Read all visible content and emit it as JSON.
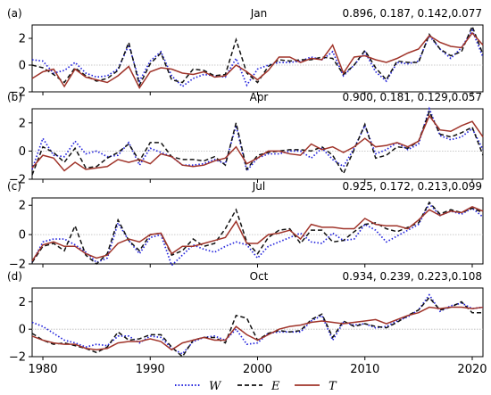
{
  "chart_data": {
    "type": "line",
    "xlim": [
      1979,
      2021
    ],
    "x_ticks": [
      1980,
      1990,
      2000,
      2010,
      2020
    ],
    "legend": {
      "placement": "bottom-center",
      "entries": [
        {
          "series": "W",
          "label": "W"
        },
        {
          "series": "E",
          "label": "E"
        },
        {
          "series": "T",
          "label": "T"
        }
      ]
    },
    "styles": {
      "W": {
        "color": "#2222dd",
        "dash": "1.5 2.2",
        "width": 1.7
      },
      "E": {
        "color": "#111111",
        "dash": "5 3",
        "width": 1.5
      },
      "T": {
        "color": "#a0342a",
        "dash": "",
        "width": 1.5
      }
    },
    "x": [
      1979,
      1980,
      1981,
      1982,
      1983,
      1984,
      1985,
      1986,
      1987,
      1988,
      1989,
      1990,
      1991,
      1992,
      1993,
      1994,
      1995,
      1996,
      1997,
      1998,
      1999,
      2000,
      2001,
      2002,
      2003,
      2004,
      2005,
      2006,
      2007,
      2008,
      2009,
      2010,
      2011,
      2012,
      2013,
      2014,
      2015,
      2016,
      2017,
      2018,
      2019,
      2020,
      2021
    ],
    "panels": [
      {
        "panel_label": "(a)",
        "title": "Jan",
        "stats": "0.896, 0.187, 0.142,0.077",
        "ylim": [
          -2,
          3
        ],
        "y_ticks": [
          -2,
          0,
          2
        ],
        "series": [
          {
            "name": "W",
            "values": [
              0.4,
              0.3,
              -0.6,
              -0.4,
              0.2,
              -0.6,
              -0.9,
              -0.8,
              -0.3,
              1.5,
              -1.2,
              0.3,
              1.0,
              -0.8,
              -1.6,
              -1.0,
              -0.7,
              -0.8,
              -0.9,
              0.5,
              -1.5,
              -0.3,
              0.0,
              0.2,
              0.2,
              0.3,
              0.6,
              0.4,
              1.0,
              -0.8,
              0.0,
              1.0,
              -0.5,
              -1.2,
              0.2,
              0.1,
              0.3,
              2.2,
              1.2,
              0.5,
              1.3,
              2.6,
              0.6
            ]
          },
          {
            "name": "E",
            "values": [
              0.0,
              -0.2,
              -0.7,
              -1.3,
              -0.2,
              -0.8,
              -1.2,
              -1.0,
              -0.4,
              1.7,
              -1.5,
              0.1,
              0.9,
              -1.1,
              -1.3,
              -0.3,
              -0.4,
              -0.8,
              -0.7,
              1.9,
              -0.6,
              -1.3,
              -0.1,
              0.4,
              0.3,
              0.4,
              0.4,
              0.6,
              0.5,
              -0.7,
              0.0,
              1.1,
              -0.2,
              -1.1,
              0.3,
              0.2,
              0.2,
              2.3,
              1.2,
              0.7,
              1.0,
              2.9,
              0.8
            ]
          },
          {
            "name": "T",
            "values": [
              -1.0,
              -0.5,
              -0.3,
              -1.6,
              -0.3,
              -0.9,
              -1.1,
              -1.3,
              -0.8,
              -0.1,
              -1.7,
              -0.5,
              -0.2,
              -0.3,
              -0.6,
              -0.7,
              -0.5,
              -0.9,
              -0.8,
              0.0,
              -0.5,
              -1.1,
              -0.4,
              0.6,
              0.6,
              0.2,
              0.5,
              0.4,
              1.5,
              -0.6,
              0.6,
              0.7,
              0.4,
              0.2,
              0.5,
              0.9,
              1.2,
              2.2,
              1.7,
              1.4,
              1.3,
              2.4,
              1.5
            ]
          }
        ]
      },
      {
        "panel_label": "(b)",
        "title": "Apr",
        "stats": "0.900, 0.181, 0.129,0.057",
        "ylim": [
          -2,
          3
        ],
        "y_ticks": [
          -2,
          0,
          2
        ],
        "series": [
          {
            "name": "W",
            "values": [
              -1.3,
              0.9,
              -0.3,
              -0.4,
              0.7,
              -0.2,
              0.0,
              -0.4,
              -0.3,
              0.6,
              -1.0,
              0.2,
              -0.1,
              -0.4,
              -1.0,
              -1.0,
              -0.9,
              -0.6,
              -0.9,
              1.8,
              -1.4,
              -0.5,
              -0.2,
              -0.2,
              0.0,
              0.0,
              -0.5,
              0.2,
              -0.6,
              -1.1,
              0.2,
              1.8,
              -0.2,
              0.1,
              0.6,
              0.1,
              0.5,
              3.0,
              1.1,
              0.8,
              1.0,
              1.6,
              0.1
            ]
          },
          {
            "name": "E",
            "values": [
              -1.7,
              0.3,
              -0.1,
              -0.8,
              0.2,
              -1.2,
              -1.1,
              -0.5,
              -0.1,
              0.5,
              -0.7,
              0.6,
              0.6,
              -0.4,
              -0.6,
              -0.6,
              -0.7,
              -0.4,
              -1.0,
              2.0,
              -1.3,
              -0.3,
              -0.1,
              0.0,
              0.1,
              0.1,
              0.0,
              0.3,
              -0.3,
              -1.6,
              0.1,
              1.9,
              -0.5,
              -0.3,
              0.3,
              0.2,
              0.7,
              2.8,
              1.2,
              1.0,
              1.3,
              1.7,
              -0.3
            ]
          },
          {
            "name": "T",
            "values": [
              -1.2,
              -0.3,
              -0.5,
              -1.4,
              -0.8,
              -1.3,
              -1.2,
              -1.1,
              -0.6,
              -0.8,
              -0.6,
              -0.9,
              -0.2,
              -0.4,
              -1.0,
              -1.1,
              -1.0,
              -0.7,
              -0.5,
              0.3,
              -0.9,
              -0.5,
              0.0,
              0.0,
              -0.2,
              -0.3,
              0.5,
              0.1,
              0.3,
              -0.1,
              0.3,
              0.9,
              0.3,
              0.4,
              0.6,
              0.3,
              0.7,
              2.5,
              1.5,
              1.4,
              1.8,
              2.1,
              1.0
            ]
          }
        ]
      },
      {
        "panel_label": "(c)",
        "title": "Jul",
        "stats": "0.925, 0.172, 0.213,0.099",
        "ylim": [
          -2,
          2.5
        ],
        "y_ticks": [
          -2,
          0,
          2
        ],
        "series": [
          {
            "name": "W",
            "values": [
              -1.9,
              -0.5,
              -0.3,
              -0.3,
              -0.7,
              -1.2,
              -1.9,
              -1.6,
              0.8,
              -0.4,
              -1.3,
              -0.2,
              0.0,
              -2.1,
              -1.4,
              -0.7,
              -1.0,
              -1.2,
              -0.8,
              -0.5,
              -0.7,
              -1.6,
              -0.8,
              -0.5,
              -0.2,
              0.1,
              -0.5,
              -0.6,
              0.1,
              -0.4,
              -0.3,
              0.7,
              0.3,
              -0.5,
              -0.1,
              0.3,
              0.7,
              2.1,
              1.3,
              1.6,
              1.4,
              1.8,
              1.2
            ]
          },
          {
            "name": "E",
            "values": [
              -1.9,
              -0.8,
              -0.6,
              -1.1,
              0.6,
              -1.4,
              -2.0,
              -1.3,
              1.0,
              -0.4,
              -1.1,
              0.0,
              0.1,
              -1.4,
              -1.1,
              -0.3,
              -0.8,
              -0.6,
              0.4,
              1.7,
              -0.5,
              -1.3,
              -0.2,
              0.3,
              0.4,
              -0.6,
              0.3,
              0.3,
              -0.5,
              -0.4,
              0.2,
              0.7,
              0.8,
              0.4,
              0.2,
              0.5,
              0.8,
              2.2,
              1.4,
              1.7,
              1.5,
              1.8,
              1.5
            ]
          },
          {
            "name": "T",
            "values": [
              -1.8,
              -0.7,
              -0.5,
              -0.8,
              -0.8,
              -1.3,
              -1.6,
              -1.4,
              -0.6,
              -0.3,
              -0.5,
              0.0,
              0.1,
              -1.3,
              -0.8,
              -0.8,
              -0.6,
              -0.4,
              -0.2,
              0.9,
              -0.6,
              -0.6,
              0.0,
              0.1,
              0.3,
              -0.3,
              0.7,
              0.5,
              0.5,
              0.4,
              0.4,
              1.1,
              0.7,
              0.6,
              0.6,
              0.4,
              1.0,
              1.7,
              1.3,
              1.6,
              1.5,
              1.9,
              1.6
            ]
          }
        ]
      },
      {
        "panel_label": "(d)",
        "title": "Oct",
        "stats": "0.934, 0.239, 0.223,0.108",
        "ylim": [
          -2,
          3
        ],
        "y_ticks": [
          -2,
          0,
          2
        ],
        "series": [
          {
            "name": "W",
            "values": [
              0.5,
              0.2,
              -0.3,
              -0.8,
              -1.0,
              -1.3,
              -1.1,
              -1.2,
              -0.5,
              -0.5,
              -1.0,
              -0.5,
              -0.6,
              -1.4,
              -1.8,
              -0.9,
              -0.6,
              -0.5,
              -0.8,
              0.0,
              -1.1,
              -1.0,
              -0.3,
              -0.2,
              -0.2,
              -0.2,
              0.6,
              1.0,
              -0.8,
              0.5,
              0.3,
              0.4,
              0.1,
              0.2,
              0.6,
              0.9,
              1.4,
              2.5,
              1.3,
              1.7,
              1.9,
              1.5,
              1.6
            ]
          },
          {
            "name": "E",
            "values": [
              -0.3,
              -0.8,
              -1.1,
              -1.0,
              -1.2,
              -1.4,
              -1.7,
              -1.3,
              -0.2,
              -0.8,
              -0.7,
              -0.4,
              -0.4,
              -1.3,
              -2.0,
              -0.8,
              -0.6,
              -0.6,
              -1.0,
              1.0,
              0.8,
              -0.8,
              -0.3,
              -0.1,
              -0.2,
              -0.1,
              0.7,
              1.1,
              -0.6,
              0.6,
              0.2,
              0.4,
              0.2,
              0.1,
              0.5,
              1.0,
              1.4,
              2.3,
              1.4,
              1.6,
              2.0,
              1.2,
              1.2
            ]
          },
          {
            "name": "T",
            "values": [
              -0.5,
              -0.8,
              -1.0,
              -1.1,
              -1.1,
              -1.4,
              -1.5,
              -1.4,
              -1.0,
              -0.9,
              -0.9,
              -0.7,
              -0.9,
              -1.5,
              -1.0,
              -0.8,
              -0.6,
              -0.8,
              -0.8,
              0.2,
              -0.4,
              -0.8,
              -0.4,
              0.0,
              0.2,
              0.3,
              0.5,
              0.6,
              0.5,
              0.4,
              0.5,
              0.6,
              0.7,
              0.4,
              0.7,
              1.0,
              1.2,
              1.6,
              1.5,
              1.6,
              1.6,
              1.5,
              1.6
            ]
          }
        ]
      }
    ]
  }
}
